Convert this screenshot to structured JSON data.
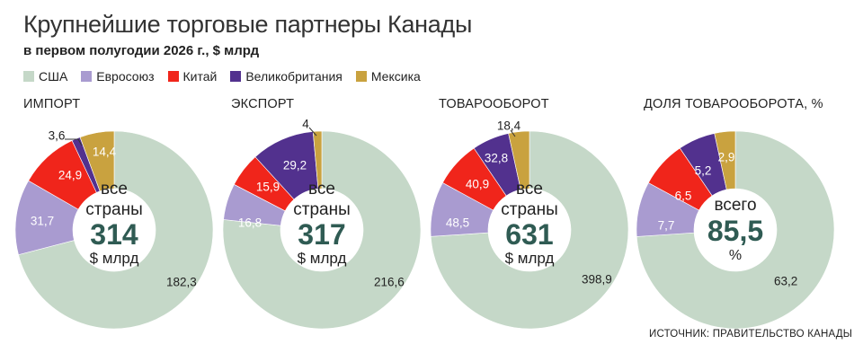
{
  "title": "Крупнейшие торговые партнеры Канады",
  "subtitle": "в первом полугодии 2026 г., $ млрд",
  "legend": [
    {
      "name": "США",
      "color": "#c5d8c8"
    },
    {
      "name": "Евросоюз",
      "color": "#a99bd0"
    },
    {
      "name": "Китай",
      "color": "#f0251b"
    },
    {
      "name": "Великобритания",
      "color": "#52318e"
    },
    {
      "name": "Мексика",
      "color": "#c9a23f"
    }
  ],
  "source": "ИСТОЧНИК: ПРАВИТЕЛЬСТВО КАНАДЫ",
  "chart_data": [
    {
      "type": "pie",
      "title": "ИМПОРТ",
      "center_top": "все\nстраны",
      "center_value": "314",
      "center_unit": "$ млрд",
      "series": [
        {
          "name": "США",
          "value": 182.3,
          "label": "182,3"
        },
        {
          "name": "Евросоюз",
          "value": 31.7,
          "label": "31,7"
        },
        {
          "name": "Китай",
          "value": 24.9,
          "label": "24,9"
        },
        {
          "name": "Великобритания",
          "value": 3.6,
          "label": "3,6"
        },
        {
          "name": "Мексика",
          "value": 14.4,
          "label": "14,4"
        }
      ]
    },
    {
      "type": "pie",
      "title": "ЭКСПОРТ",
      "center_top": "все\nстраны",
      "center_value": "317",
      "center_unit": "$ млрд",
      "series": [
        {
          "name": "США",
          "value": 216.6,
          "label": "216,6"
        },
        {
          "name": "Евросоюз",
          "value": 16.8,
          "label": "16,8"
        },
        {
          "name": "Китай",
          "value": 15.9,
          "label": "15,9"
        },
        {
          "name": "Великобритания",
          "value": 29.2,
          "label": "29,2"
        },
        {
          "name": "Мексика",
          "value": 4,
          "label": "4"
        }
      ]
    },
    {
      "type": "pie",
      "title": "ТОВАРООБОРОТ",
      "center_top": "все\nстраны",
      "center_value": "631",
      "center_unit": "$ млрд",
      "series": [
        {
          "name": "США",
          "value": 398.9,
          "label": "398,9"
        },
        {
          "name": "Евросоюз",
          "value": 48.5,
          "label": "48,5"
        },
        {
          "name": "Китай",
          "value": 40.9,
          "label": "40,9"
        },
        {
          "name": "Великобритания",
          "value": 32.8,
          "label": "32,8"
        },
        {
          "name": "Мексика",
          "value": 18.4,
          "label": "18,4"
        }
      ]
    },
    {
      "type": "pie",
      "title": "ДОЛЯ ТОВАРООБОРОТА, %",
      "center_top": "всего",
      "center_value": "85,5",
      "center_unit": "%",
      "series": [
        {
          "name": "США",
          "value": 63.2,
          "label": "63,2"
        },
        {
          "name": "Евросоюз",
          "value": 7.7,
          "label": "7,7"
        },
        {
          "name": "Китай",
          "value": 6.5,
          "label": "6,5"
        },
        {
          "name": "Великобритания",
          "value": 5.2,
          "label": "5,2"
        },
        {
          "name": "Мексика",
          "value": 2.9,
          "label": "2,9"
        }
      ]
    }
  ]
}
